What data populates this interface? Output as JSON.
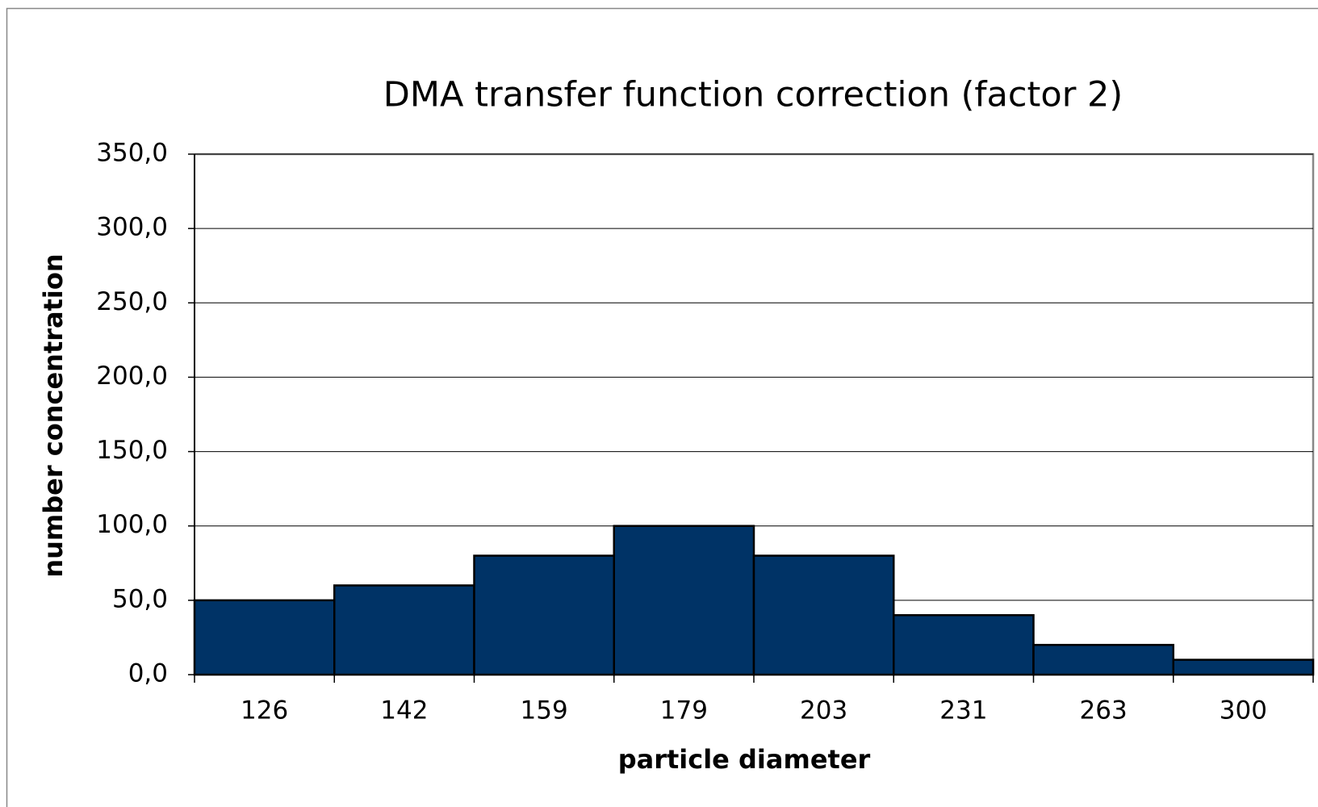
{
  "chart_data": {
    "type": "bar",
    "title": "DMA transfer function correction (factor 2)",
    "x_label": "particle diameter",
    "y_label": "number concentration",
    "categories": [
      "126",
      "142",
      "159",
      "179",
      "203",
      "231",
      "263",
      "300"
    ],
    "values": [
      50,
      60,
      80,
      100,
      80,
      40,
      20,
      10
    ],
    "color": "#003366",
    "ylim": [
      0,
      350
    ],
    "yticks": [
      {
        "value": 0,
        "label": "0,0"
      },
      {
        "value": 50,
        "label": "50,0"
      },
      {
        "value": 100,
        "label": "100,0"
      },
      {
        "value": 150,
        "label": "150,0"
      },
      {
        "value": 200,
        "label": "200,0"
      },
      {
        "value": 250,
        "label": "250,0"
      },
      {
        "value": 300,
        "label": "300,0"
      },
      {
        "value": 350,
        "label": "350,0"
      }
    ],
    "grid": true
  }
}
